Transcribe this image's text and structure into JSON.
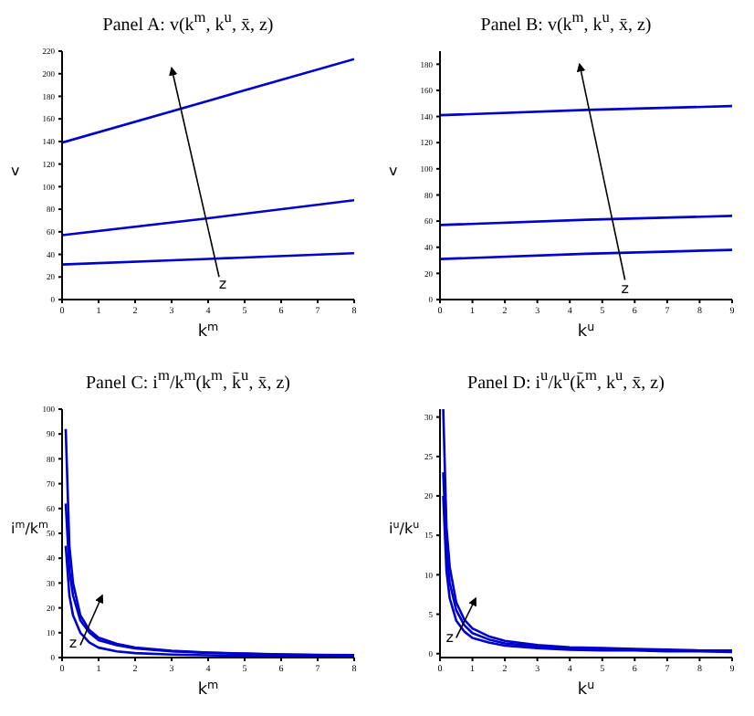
{
  "chart_data": [
    {
      "type": "line",
      "title": "Panel A: v(k$^{m}$, k$^{u}$, x̄, z)",
      "xlabel": "k$^{m}$",
      "ylabel": "v",
      "xlim": [
        0,
        8
      ],
      "xticks": [
        0,
        1,
        2,
        3,
        4,
        5,
        6,
        7,
        8
      ],
      "ylim": [
        0,
        220
      ],
      "yticks": [
        0,
        20,
        40,
        60,
        80,
        100,
        120,
        140,
        160,
        180,
        200,
        220
      ],
      "marker": "none",
      "line_style": "solid",
      "grid": false,
      "annotations": [
        "z"
      ],
      "series": [
        {
          "color": "#0000cc",
          "x": [
            0,
            4,
            8
          ],
          "values": [
            139,
            176,
            213
          ]
        },
        {
          "color": "#0000cc",
          "x": [
            0,
            4,
            8
          ],
          "values": [
            57,
            72,
            88
          ]
        },
        {
          "color": "#0000cc",
          "x": [
            0,
            4,
            8
          ],
          "values": [
            31,
            36,
            41
          ]
        }
      ]
    },
    {
      "type": "line",
      "title": "Panel B: v(k$^{m}$, k$^{u}$, x̄, z)",
      "xlabel": "k$^{u}$",
      "ylabel": "v",
      "xlim": [
        0,
        9
      ],
      "xticks": [
        0,
        1,
        2,
        3,
        4,
        5,
        6,
        7,
        8,
        9
      ],
      "ylim": [
        0,
        190
      ],
      "yticks": [
        0,
        20,
        40,
        60,
        80,
        100,
        120,
        140,
        160,
        180
      ],
      "marker": "none",
      "line_style": "solid",
      "grid": false,
      "annotations": [
        "z"
      ],
      "series": [
        {
          "color": "#0000cc",
          "x": [
            0,
            4.5,
            9
          ],
          "values": [
            141,
            145,
            148
          ]
        },
        {
          "color": "#0000cc",
          "x": [
            0,
            4.5,
            9
          ],
          "values": [
            57,
            61,
            64
          ]
        },
        {
          "color": "#0000cc",
          "x": [
            0,
            4.5,
            9
          ],
          "values": [
            31,
            35,
            38
          ]
        }
      ]
    },
    {
      "type": "line",
      "title": "Panel C: i$^{m}$/k$^{m}$(k$^{m}$, k̄$^{u}$, x̄, z)",
      "xlabel": "k$^{m}$",
      "ylabel": "i$^{m}$/k$^{m}$",
      "xlim": [
        0,
        8
      ],
      "xticks": [
        0,
        1,
        2,
        3,
        4,
        5,
        6,
        7,
        8
      ],
      "ylim": [
        0,
        100
      ],
      "yticks": [
        0,
        10,
        20,
        30,
        40,
        50,
        60,
        70,
        80,
        90,
        100
      ],
      "marker": "none",
      "line_style": "solid",
      "grid": false,
      "annotations": [
        "z"
      ],
      "series": [
        {
          "color": "#0000cc",
          "x": [
            0.1,
            0.2,
            0.3,
            0.5,
            0.75,
            1,
            1.5,
            2,
            3,
            4,
            5,
            6,
            7,
            8
          ],
          "values": [
            92,
            45,
            30,
            17,
            11,
            8,
            5.5,
            4,
            2.7,
            2,
            1.6,
            1.3,
            1.1,
            1
          ]
        },
        {
          "color": "#0000cc",
          "x": [
            0.1,
            0.2,
            0.3,
            0.5,
            0.75,
            1,
            1.5,
            2,
            3,
            4,
            5,
            6,
            7,
            8
          ],
          "values": [
            62,
            35,
            25,
            15,
            10,
            7,
            5,
            3.7,
            2.5,
            1.9,
            1.5,
            1.2,
            1,
            0.9
          ]
        },
        {
          "color": "#0000cc",
          "x": [
            0.1,
            0.2,
            0.3,
            0.5,
            0.75,
            1,
            1.5,
            2,
            3,
            4,
            5,
            6,
            7,
            8
          ],
          "values": [
            45,
            25,
            17,
            10,
            6,
            4,
            2.5,
            1.8,
            1.2,
            0.9,
            0.7,
            0.6,
            0.5,
            0.4
          ]
        }
      ]
    },
    {
      "type": "line",
      "title": "Panel D: i$^{u}$/k$^{u}$(k̄$^{m}$, k$^{u}$, x̄, z)",
      "xlabel": "k$^{u}$",
      "ylabel": "i$^{u}$/k$^{u}$",
      "xlim": [
        0,
        9
      ],
      "xticks": [
        0,
        1,
        2,
        3,
        4,
        5,
        6,
        7,
        8,
        9
      ],
      "ylim": [
        -0.5,
        31
      ],
      "yticks": [
        0,
        5,
        10,
        15,
        20,
        25,
        30
      ],
      "marker": "none",
      "line_style": "solid",
      "grid": false,
      "annotations": [
        "z"
      ],
      "series": [
        {
          "color": "#0000cc",
          "x": [
            0.1,
            0.2,
            0.3,
            0.5,
            0.75,
            1,
            1.5,
            2,
            3,
            4,
            5,
            6,
            7,
            8,
            9
          ],
          "values": [
            31,
            16,
            11,
            6.5,
            4.3,
            3.2,
            2.2,
            1.6,
            1.1,
            0.8,
            0.7,
            0.6,
            0.5,
            0.4,
            0.4
          ]
        },
        {
          "color": "#0000cc",
          "x": [
            0.1,
            0.2,
            0.3,
            0.5,
            0.75,
            1,
            1.5,
            2,
            3,
            4,
            5,
            6,
            7,
            8,
            9
          ],
          "values": [
            23,
            13,
            9,
            5.5,
            3.6,
            2.6,
            1.8,
            1.3,
            0.9,
            0.7,
            0.6,
            0.5,
            0.4,
            0.4,
            0.3
          ]
        },
        {
          "color": "#0000cc",
          "x": [
            0.1,
            0.2,
            0.3,
            0.5,
            0.75,
            1,
            1.5,
            2,
            3,
            4,
            5,
            6,
            7,
            8,
            9
          ],
          "values": [
            20,
            10.5,
            7,
            4.2,
            2.8,
            2,
            1.4,
            1,
            0.7,
            0.5,
            0.4,
            0.4,
            0.3,
            0.3,
            0.2
          ]
        }
      ]
    }
  ]
}
